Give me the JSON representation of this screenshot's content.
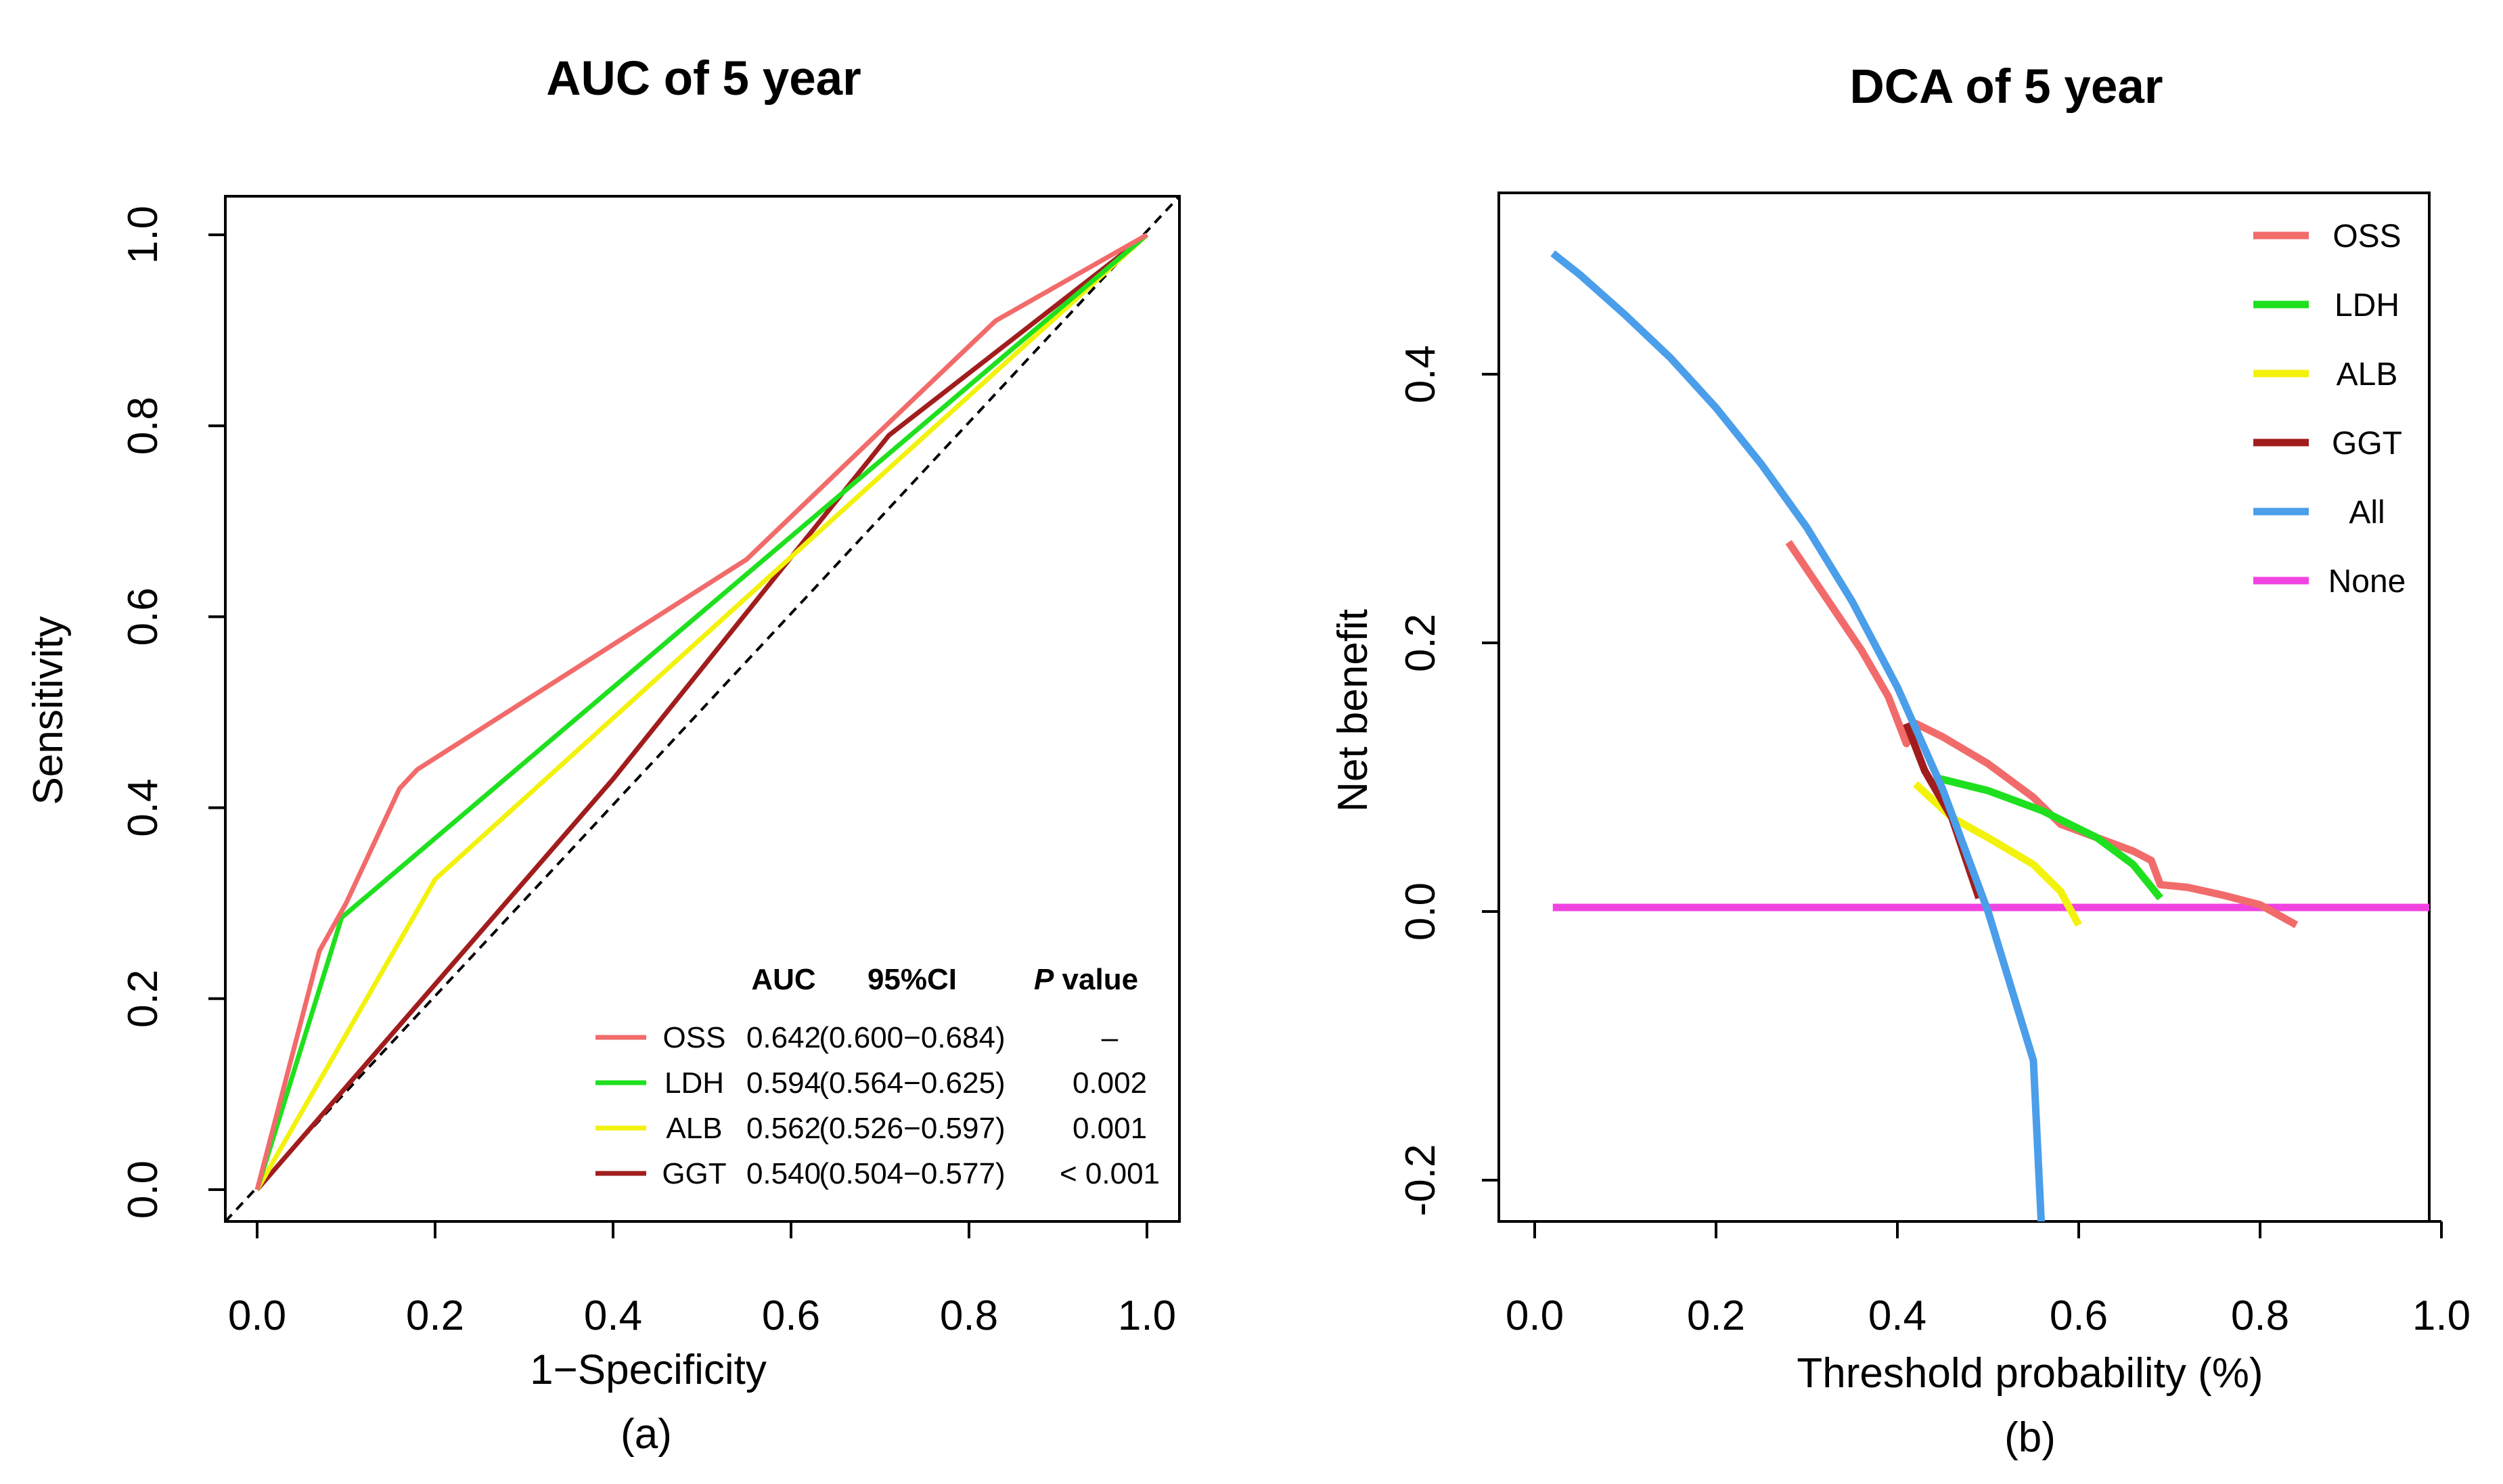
{
  "chart_data": [
    {
      "type": "line",
      "title": "AUC of 5 year",
      "xlabel": "1−Specificity",
      "ylabel": "Sensitivity",
      "caption": "(a)",
      "xlim": [
        0,
        1
      ],
      "ylim": [
        0,
        1
      ],
      "xticks": [
        "0.0",
        "0.2",
        "0.4",
        "0.6",
        "0.8",
        "1.0"
      ],
      "yticks": [
        "0.0",
        "0.2",
        "0.4",
        "0.6",
        "0.8",
        "1.0"
      ],
      "reference_line": "diagonal dashed",
      "legend": {
        "position": "bottom-right",
        "headers": {
          "auc": "AUC",
          "ci": "95%CI",
          "p": "P value"
        },
        "p_italic": "P",
        "p_rest": " value"
      },
      "series": [
        {
          "name": "OSS",
          "color": "#F26B6B",
          "auc": "0.642",
          "ci": "(0.600−0.684)",
          "p": "–",
          "points": [
            [
              0,
              0
            ],
            [
              0.07,
              0.25
            ],
            [
              0.1,
              0.3
            ],
            [
              0.16,
              0.42
            ],
            [
              0.18,
              0.44
            ],
            [
              0.55,
              0.66
            ],
            [
              0.74,
              0.83
            ],
            [
              0.83,
              0.91
            ],
            [
              1,
              1
            ]
          ]
        },
        {
          "name": "LDH",
          "color": "#1FE01F",
          "auc": "0.594",
          "ci": "(0.564−0.625)",
          "p": "0.002",
          "points": [
            [
              0,
              0
            ],
            [
              0.095,
              0.285
            ],
            [
              1,
              1
            ]
          ]
        },
        {
          "name": "ALB",
          "color": "#F2F20D",
          "auc": "0.562",
          "ci": "(0.526−0.597)",
          "p": "0.001",
          "points": [
            [
              0,
              0
            ],
            [
              0.2,
              0.325
            ],
            [
              1,
              1
            ]
          ]
        },
        {
          "name": "GGT",
          "color": "#A11D1D",
          "auc": "0.540",
          "ci": "(0.504−0.577)",
          "p": "< 0.001",
          "points": [
            [
              0,
              0
            ],
            [
              0.4,
              0.43
            ],
            [
              0.71,
              0.79
            ],
            [
              1,
              1
            ]
          ]
        }
      ]
    },
    {
      "type": "line",
      "title": "DCA of 5 year",
      "xlabel": "Threshold probability (%)",
      "ylabel": "Net benefit",
      "caption": "(b)",
      "xlim": [
        0,
        1
      ],
      "ylim": [
        -0.2,
        0.5
      ],
      "xticks": [
        "0.0",
        "0.2",
        "0.4",
        "0.6",
        "0.8",
        "1.0"
      ],
      "yticks": [
        "-0.2",
        "0.0",
        "0.2",
        "0.4"
      ],
      "legend": {
        "position": "top-right"
      },
      "series": [
        {
          "name": "OSS",
          "color": "#F26B6B",
          "points": [
            [
              0.28,
              0.275
            ],
            [
              0.32,
              0.235
            ],
            [
              0.36,
              0.195
            ],
            [
              0.39,
              0.16
            ],
            [
              0.41,
              0.125
            ],
            [
              0.42,
              0.14
            ],
            [
              0.45,
              0.13
            ],
            [
              0.5,
              0.11
            ],
            [
              0.55,
              0.085
            ],
            [
              0.58,
              0.065
            ],
            [
              0.62,
              0.055
            ],
            [
              0.66,
              0.045
            ],
            [
              0.68,
              0.038
            ],
            [
              0.69,
              0.02
            ],
            [
              0.72,
              0.018
            ],
            [
              0.76,
              0.012
            ],
            [
              0.8,
              0.005
            ],
            [
              0.84,
              -0.01
            ]
          ]
        },
        {
          "name": "LDH",
          "color": "#1FE01F",
          "points": [
            [
              0.44,
              0.1
            ],
            [
              0.5,
              0.09
            ],
            [
              0.56,
              0.075
            ],
            [
              0.62,
              0.055
            ],
            [
              0.66,
              0.035
            ],
            [
              0.69,
              0.01
            ]
          ]
        },
        {
          "name": "ALB",
          "color": "#F2F20D",
          "points": [
            [
              0.42,
              0.095
            ],
            [
              0.46,
              0.07
            ],
            [
              0.5,
              0.055
            ],
            [
              0.55,
              0.035
            ],
            [
              0.58,
              0.015
            ],
            [
              0.6,
              -0.01
            ]
          ]
        },
        {
          "name": "GGT",
          "color": "#A11D1D",
          "points": [
            [
              0.41,
              0.14
            ],
            [
              0.43,
              0.105
            ],
            [
              0.46,
              0.07
            ],
            [
              0.49,
              0.01
            ]
          ]
        },
        {
          "name": "All",
          "color": "#4A9EEA",
          "points": [
            [
              0.02,
              0.49
            ],
            [
              0.05,
              0.474
            ],
            [
              0.1,
              0.444
            ],
            [
              0.15,
              0.412
            ],
            [
              0.2,
              0.375
            ],
            [
              0.25,
              0.333
            ],
            [
              0.3,
              0.286
            ],
            [
              0.35,
              0.231
            ],
            [
              0.4,
              0.167
            ],
            [
              0.45,
              0.091
            ],
            [
              0.5,
              0.0
            ],
            [
              0.55,
              -0.111
            ],
            [
              0.56,
              -0.25
            ]
          ]
        },
        {
          "name": "None",
          "color": "#F043E0",
          "points": [
            [
              0.02,
              0.003
            ],
            [
              0.99,
              0.003
            ]
          ]
        }
      ]
    }
  ]
}
